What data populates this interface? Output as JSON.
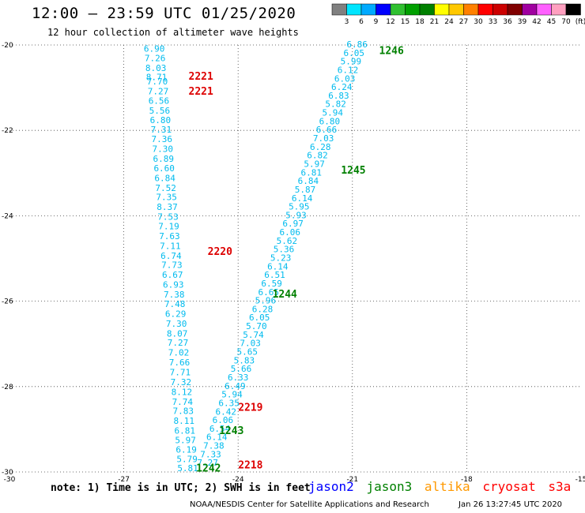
{
  "header": {
    "title": "12:00 — 23:59 UTC 01/25/2020",
    "subtitle": "12 hour collection of altimeter wave heights"
  },
  "colorbar": {
    "labels": [
      "3",
      "6",
      "9",
      "12",
      "15",
      "18",
      "21",
      "24",
      "27",
      "30",
      "33",
      "36",
      "39",
      "42",
      "45",
      "70",
      "(ft)"
    ],
    "colors": [
      "#808080",
      "#00e5ff",
      "#00aaff",
      "#0000ff",
      "#30c030",
      "#00a000",
      "#008000",
      "#ffff00",
      "#ffc800",
      "#ff8000",
      "#ff0000",
      "#cc0000",
      "#800000",
      "#a000a0",
      "#ff60ff",
      "#ffa0c0",
      "#000000"
    ]
  },
  "footer": {
    "note": "note: 1) Time is in UTC; 2) SWH is in feet",
    "legend": [
      {
        "label": "jason2",
        "color": "#0000ff"
      },
      {
        "label": "jason3",
        "color": "#008000"
      },
      {
        "label": "altika",
        "color": "#ff9900"
      },
      {
        "label": "cryosat",
        "color": "#ff0000"
      },
      {
        "label": "s3a",
        "color": "#ff0000"
      }
    ],
    "credit": "NOAA/NESDIS Center for Satellite Applications and Research",
    "timestamp": "Jan 26 13:27:45 UTC 2020"
  },
  "chart_data": {
    "type": "scatter",
    "xlim": [
      -30,
      -15
    ],
    "ylim": [
      -30,
      -20
    ],
    "x_ticks": [
      -30,
      -27,
      -24,
      -21,
      -18,
      -15
    ],
    "y_ticks": [
      -20,
      -22,
      -24,
      -26,
      -28,
      -30
    ],
    "grid": true,
    "value_color": "#00bbee",
    "tracks": [
      {
        "labels": [
          {
            "text": "2221",
            "lon": -25.3,
            "lat": -20.75,
            "color": "#dd0000"
          },
          {
            "text": "2221",
            "lon": -25.3,
            "lat": -21.1,
            "color": "#dd0000"
          },
          {
            "text": "2220",
            "lon": -24.8,
            "lat": -24.85,
            "color": "#dd0000"
          },
          {
            "text": "2219",
            "lon": -24.0,
            "lat": -28.5,
            "color": "#dd0000"
          },
          {
            "text": "2218",
            "lon": -24.0,
            "lat": -29.85,
            "color": "#dd0000"
          }
        ],
        "points": [
          {
            "lon": -26.2,
            "lat": -20.1,
            "v": "6.90"
          },
          {
            "lon": -26.18,
            "lat": -20.32,
            "v": "7.26"
          },
          {
            "lon": -26.16,
            "lat": -20.55,
            "v": "8.03"
          },
          {
            "lon": -26.14,
            "lat": -20.77,
            "v": "8.71"
          },
          {
            "lon": -26.12,
            "lat": -20.87,
            "v": "7.70"
          },
          {
            "lon": -26.1,
            "lat": -21.1,
            "v": "7.27"
          },
          {
            "lon": -26.08,
            "lat": -21.32,
            "v": "6.56"
          },
          {
            "lon": -26.06,
            "lat": -21.55,
            "v": "5.56"
          },
          {
            "lon": -26.04,
            "lat": -21.77,
            "v": "6.80"
          },
          {
            "lon": -26.02,
            "lat": -22.0,
            "v": "7.31"
          },
          {
            "lon": -26.0,
            "lat": -22.22,
            "v": "7.36"
          },
          {
            "lon": -25.98,
            "lat": -22.45,
            "v": "7.30"
          },
          {
            "lon": -25.96,
            "lat": -22.68,
            "v": "6.89"
          },
          {
            "lon": -25.94,
            "lat": -22.9,
            "v": "6.60"
          },
          {
            "lon": -25.92,
            "lat": -23.13,
            "v": "6.84"
          },
          {
            "lon": -25.9,
            "lat": -23.36,
            "v": "7.52"
          },
          {
            "lon": -25.88,
            "lat": -23.58,
            "v": "7.35"
          },
          {
            "lon": -25.86,
            "lat": -23.81,
            "v": "8.37"
          },
          {
            "lon": -25.84,
            "lat": -24.04,
            "v": "7.53"
          },
          {
            "lon": -25.82,
            "lat": -24.26,
            "v": "7.19"
          },
          {
            "lon": -25.8,
            "lat": -24.49,
            "v": "7.63"
          },
          {
            "lon": -25.78,
            "lat": -24.72,
            "v": "7.11"
          },
          {
            "lon": -25.76,
            "lat": -24.95,
            "v": "6.74"
          },
          {
            "lon": -25.74,
            "lat": -25.17,
            "v": "7.73"
          },
          {
            "lon": -25.72,
            "lat": -25.4,
            "v": "6.67"
          },
          {
            "lon": -25.7,
            "lat": -25.63,
            "v": "6.93"
          },
          {
            "lon": -25.68,
            "lat": -25.86,
            "v": "7.38"
          },
          {
            "lon": -25.66,
            "lat": -26.08,
            "v": "7.48"
          },
          {
            "lon": -25.64,
            "lat": -26.31,
            "v": "6.29"
          },
          {
            "lon": -25.62,
            "lat": -26.54,
            "v": "7.30"
          },
          {
            "lon": -25.6,
            "lat": -26.77,
            "v": "8.07"
          },
          {
            "lon": -25.58,
            "lat": -26.99,
            "v": "7.27"
          },
          {
            "lon": -25.56,
            "lat": -27.22,
            "v": "7.02"
          },
          {
            "lon": -25.54,
            "lat": -27.45,
            "v": "7.66"
          },
          {
            "lon": -25.52,
            "lat": -27.68,
            "v": "7.71"
          },
          {
            "lon": -25.5,
            "lat": -27.91,
            "v": "7.32"
          },
          {
            "lon": -25.48,
            "lat": -28.14,
            "v": "8.12"
          },
          {
            "lon": -25.46,
            "lat": -28.37,
            "v": "7.74"
          },
          {
            "lon": -25.44,
            "lat": -28.59,
            "v": "7.83"
          },
          {
            "lon": -25.42,
            "lat": -28.82,
            "v": "8.11"
          },
          {
            "lon": -25.4,
            "lat": -29.05,
            "v": "6.81"
          },
          {
            "lon": -25.38,
            "lat": -29.27,
            "v": "5.97"
          },
          {
            "lon": -25.36,
            "lat": -29.49,
            "v": "6.19"
          },
          {
            "lon": -25.34,
            "lat": -29.71,
            "v": "5.79"
          },
          {
            "lon": -25.32,
            "lat": -29.93,
            "v": "5.81"
          }
        ]
      },
      {
        "labels": [
          {
            "text": "1246",
            "lon": -20.3,
            "lat": -20.15,
            "color": "#008000"
          },
          {
            "text": "1245",
            "lon": -21.3,
            "lat": -22.95,
            "color": "#008000"
          },
          {
            "text": "1244",
            "lon": -23.1,
            "lat": -25.85,
            "color": "#008000"
          },
          {
            "text": "1243",
            "lon": -24.5,
            "lat": -29.05,
            "color": "#008000"
          },
          {
            "text": "1242",
            "lon": -25.1,
            "lat": -29.93,
            "color": "#008000"
          }
        ],
        "points": [
          {
            "lon": -20.88,
            "lat": -20.0,
            "v": "6.86"
          },
          {
            "lon": -20.96,
            "lat": -20.2,
            "v": "6.05"
          },
          {
            "lon": -21.04,
            "lat": -20.4,
            "v": "5.99"
          },
          {
            "lon": -21.12,
            "lat": -20.6,
            "v": "6.12"
          },
          {
            "lon": -21.2,
            "lat": -20.8,
            "v": "6.03"
          },
          {
            "lon": -21.28,
            "lat": -21.0,
            "v": "6.24"
          },
          {
            "lon": -21.36,
            "lat": -21.2,
            "v": "6.83"
          },
          {
            "lon": -21.44,
            "lat": -21.4,
            "v": "5.82"
          },
          {
            "lon": -21.52,
            "lat": -21.6,
            "v": "5.94"
          },
          {
            "lon": -21.6,
            "lat": -21.8,
            "v": "6.80"
          },
          {
            "lon": -21.68,
            "lat": -22.0,
            "v": "6.66"
          },
          {
            "lon": -21.76,
            "lat": -22.2,
            "v": "7.03"
          },
          {
            "lon": -21.84,
            "lat": -22.4,
            "v": "6.28"
          },
          {
            "lon": -21.92,
            "lat": -22.6,
            "v": "6.82"
          },
          {
            "lon": -22.0,
            "lat": -22.8,
            "v": "5.97"
          },
          {
            "lon": -22.08,
            "lat": -23.0,
            "v": "6.81"
          },
          {
            "lon": -22.16,
            "lat": -23.2,
            "v": "6.84"
          },
          {
            "lon": -22.24,
            "lat": -23.4,
            "v": "5.87"
          },
          {
            "lon": -22.32,
            "lat": -23.6,
            "v": "6.14"
          },
          {
            "lon": -22.4,
            "lat": -23.8,
            "v": "5.95"
          },
          {
            "lon": -22.48,
            "lat": -24.0,
            "v": "5.93"
          },
          {
            "lon": -22.56,
            "lat": -24.2,
            "v": "6.97"
          },
          {
            "lon": -22.64,
            "lat": -24.4,
            "v": "6.06"
          },
          {
            "lon": -22.72,
            "lat": -24.6,
            "v": "5.62"
          },
          {
            "lon": -22.8,
            "lat": -24.8,
            "v": "5.36"
          },
          {
            "lon": -22.88,
            "lat": -25.0,
            "v": "5.23"
          },
          {
            "lon": -22.96,
            "lat": -25.2,
            "v": "6.14"
          },
          {
            "lon": -23.04,
            "lat": -25.4,
            "v": "6.51"
          },
          {
            "lon": -23.12,
            "lat": -25.6,
            "v": "6.59"
          },
          {
            "lon": -23.2,
            "lat": -25.8,
            "v": "6.65"
          },
          {
            "lon": -23.28,
            "lat": -26.0,
            "v": "5.96"
          },
          {
            "lon": -23.36,
            "lat": -26.2,
            "v": "6.28"
          },
          {
            "lon": -23.44,
            "lat": -26.4,
            "v": "6.05"
          },
          {
            "lon": -23.52,
            "lat": -26.6,
            "v": "5.70"
          },
          {
            "lon": -23.6,
            "lat": -26.8,
            "v": "5.74"
          },
          {
            "lon": -23.68,
            "lat": -27.0,
            "v": "7.03"
          },
          {
            "lon": -23.76,
            "lat": -27.2,
            "v": "5.65"
          },
          {
            "lon": -23.84,
            "lat": -27.4,
            "v": "5.83"
          },
          {
            "lon": -23.92,
            "lat": -27.6,
            "v": "5.66"
          },
          {
            "lon": -24.0,
            "lat": -27.8,
            "v": "6.33"
          },
          {
            "lon": -24.08,
            "lat": -28.0,
            "v": "6.49"
          },
          {
            "lon": -24.16,
            "lat": -28.2,
            "v": "5.94"
          },
          {
            "lon": -24.24,
            "lat": -28.4,
            "v": "6.35"
          },
          {
            "lon": -24.32,
            "lat": -28.6,
            "v": "6.42"
          },
          {
            "lon": -24.4,
            "lat": -28.8,
            "v": "6.06"
          },
          {
            "lon": -24.48,
            "lat": -29.0,
            "v": "6.54"
          },
          {
            "lon": -24.56,
            "lat": -29.2,
            "v": "6.14"
          },
          {
            "lon": -24.64,
            "lat": -29.4,
            "v": "7.38"
          },
          {
            "lon": -24.72,
            "lat": -29.6,
            "v": "7.33"
          },
          {
            "lon": -24.8,
            "lat": -29.8,
            "v": "7.27"
          }
        ]
      }
    ]
  }
}
